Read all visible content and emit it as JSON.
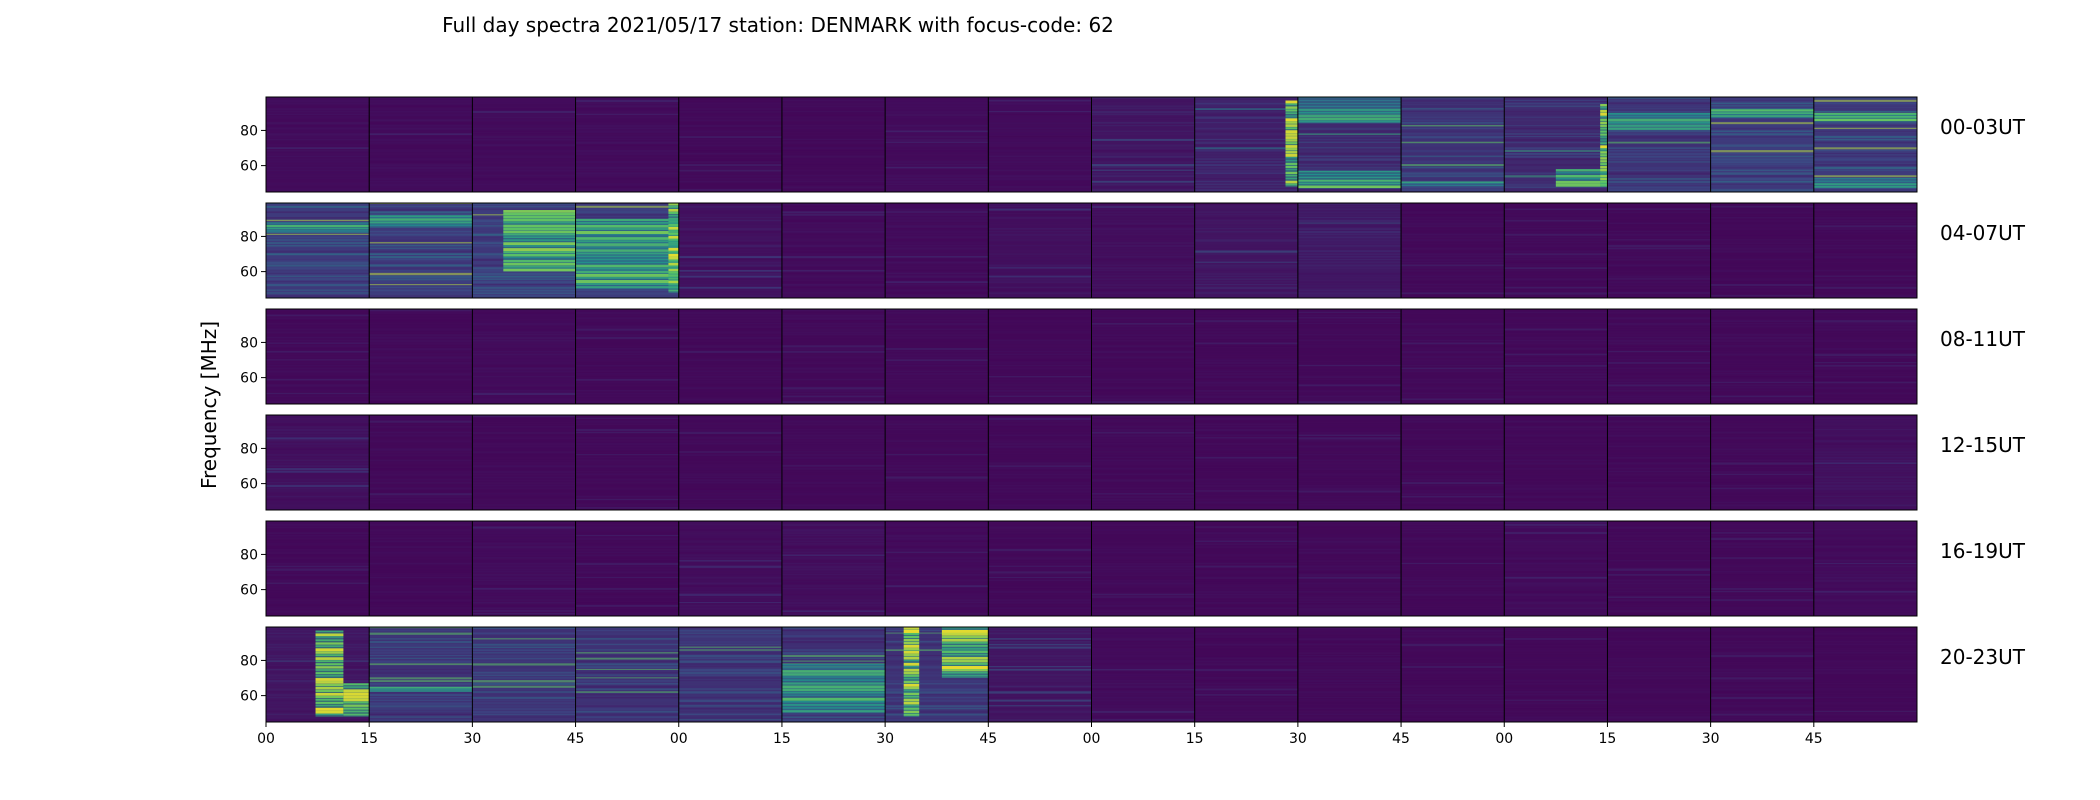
{
  "chart_data": {
    "type": "heatmap",
    "title": "Full day spectra 2021/05/17 station: DENMARK with focus-code: 62",
    "ylabel": "Frequency [MHz]",
    "xlabel": "",
    "ylim": [
      45,
      99
    ],
    "y_ticks": [
      60,
      80
    ],
    "x_tick_labels": [
      "00",
      "15",
      "30",
      "45",
      "00",
      "15",
      "30",
      "45",
      "00",
      "15",
      "30",
      "45",
      "00",
      "15",
      "30",
      "45"
    ],
    "colormap": "viridis",
    "colors": {
      "low": "#440154",
      "mid": "#21918c",
      "high": "#fde725"
    },
    "rows": [
      {
        "label": "00-03UT",
        "panels": [
          {
            "level": 0.05,
            "events": []
          },
          {
            "level": 0.05,
            "events": []
          },
          {
            "level": 0.05,
            "events": []
          },
          {
            "level": 0.05,
            "events": []
          },
          {
            "level": 0.04,
            "events": []
          },
          {
            "level": 0.04,
            "events": []
          },
          {
            "level": 0.05,
            "events": []
          },
          {
            "level": 0.05,
            "events": []
          },
          {
            "level": 0.1,
            "events": []
          },
          {
            "level": 0.15,
            "events": [
              {
                "t0": 0.88,
                "t1": 1.0,
                "f0": 48,
                "f1": 97,
                "intensity": 1.0
              }
            ]
          },
          {
            "level": 0.2,
            "events": [
              {
                "t0": 0.0,
                "t1": 1.0,
                "f0": 47,
                "f1": 57,
                "intensity": 0.9
              },
              {
                "t0": 0.0,
                "t1": 1.0,
                "f0": 84,
                "f1": 99,
                "intensity": 0.7
              }
            ]
          },
          {
            "level": 0.25,
            "events": [
              {
                "t0": 0.0,
                "t1": 1.0,
                "f0": 48,
                "f1": 51,
                "intensity": 0.6
              }
            ]
          },
          {
            "level": 0.2,
            "events": [
              {
                "t0": 0.5,
                "t1": 1.0,
                "f0": 48,
                "f1": 58,
                "intensity": 0.8
              },
              {
                "t0": 0.93,
                "t1": 1.0,
                "f0": 48,
                "f1": 95,
                "intensity": 1.0
              }
            ]
          },
          {
            "level": 0.25,
            "events": [
              {
                "t0": 0.0,
                "t1": 1.0,
                "f0": 80,
                "f1": 90,
                "intensity": 0.7
              }
            ]
          },
          {
            "level": 0.3,
            "events": [
              {
                "t0": 0.0,
                "t1": 1.0,
                "f0": 87,
                "f1": 92,
                "intensity": 0.9
              }
            ]
          },
          {
            "level": 0.3,
            "events": [
              {
                "t0": 0.0,
                "t1": 1.0,
                "f0": 85,
                "f1": 90,
                "intensity": 0.9
              },
              {
                "t0": 0.0,
                "t1": 1.0,
                "f0": 47,
                "f1": 53,
                "intensity": 0.7
              }
            ]
          }
        ]
      },
      {
        "label": "04-07UT",
        "panels": [
          {
            "level": 0.3,
            "events": [
              {
                "t0": 0.0,
                "t1": 1.0,
                "f0": 82,
                "f1": 88,
                "intensity": 0.8
              }
            ]
          },
          {
            "level": 0.3,
            "events": [
              {
                "t0": 0.0,
                "t1": 1.0,
                "f0": 85,
                "f1": 92,
                "intensity": 0.8
              }
            ]
          },
          {
            "level": 0.3,
            "events": [
              {
                "t0": 0.3,
                "t1": 1.0,
                "f0": 60,
                "f1": 95,
                "intensity": 0.85
              }
            ]
          },
          {
            "level": 0.3,
            "events": [
              {
                "t0": 0.0,
                "t1": 1.0,
                "f0": 50,
                "f1": 90,
                "intensity": 0.8
              },
              {
                "t0": 0.9,
                "t1": 1.0,
                "f0": 48,
                "f1": 99,
                "intensity": 1.0
              }
            ]
          },
          {
            "level": 0.08,
            "events": []
          },
          {
            "level": 0.05,
            "events": []
          },
          {
            "level": 0.05,
            "events": []
          },
          {
            "level": 0.07,
            "events": []
          },
          {
            "level": 0.06,
            "events": []
          },
          {
            "level": 0.1,
            "events": []
          },
          {
            "level": 0.12,
            "events": []
          },
          {
            "level": 0.04,
            "events": []
          },
          {
            "level": 0.04,
            "events": []
          },
          {
            "level": 0.04,
            "events": []
          },
          {
            "level": 0.04,
            "events": []
          },
          {
            "level": 0.04,
            "events": []
          }
        ]
      },
      {
        "label": "08-11UT",
        "panels": [
          {
            "level": 0.04,
            "events": []
          },
          {
            "level": 0.04,
            "events": []
          },
          {
            "level": 0.05,
            "events": []
          },
          {
            "level": 0.04,
            "events": []
          },
          {
            "level": 0.04,
            "events": []
          },
          {
            "level": 0.04,
            "events": []
          },
          {
            "level": 0.04,
            "events": []
          },
          {
            "level": 0.04,
            "events": []
          },
          {
            "level": 0.04,
            "events": []
          },
          {
            "level": 0.04,
            "events": []
          },
          {
            "level": 0.04,
            "events": []
          },
          {
            "level": 0.04,
            "events": []
          },
          {
            "level": 0.04,
            "events": []
          },
          {
            "level": 0.04,
            "events": []
          },
          {
            "level": 0.04,
            "events": []
          },
          {
            "level": 0.04,
            "events": []
          }
        ]
      },
      {
        "label": "12-15UT",
        "panels": [
          {
            "level": 0.07,
            "events": []
          },
          {
            "level": 0.04,
            "events": []
          },
          {
            "level": 0.04,
            "events": []
          },
          {
            "level": 0.04,
            "events": []
          },
          {
            "level": 0.04,
            "events": []
          },
          {
            "level": 0.04,
            "events": []
          },
          {
            "level": 0.04,
            "events": []
          },
          {
            "level": 0.04,
            "events": []
          },
          {
            "level": 0.04,
            "events": []
          },
          {
            "level": 0.04,
            "events": []
          },
          {
            "level": 0.04,
            "events": []
          },
          {
            "level": 0.04,
            "events": []
          },
          {
            "level": 0.04,
            "events": []
          },
          {
            "level": 0.04,
            "events": []
          },
          {
            "level": 0.04,
            "events": []
          },
          {
            "level": 0.07,
            "events": []
          }
        ]
      },
      {
        "label": "16-19UT",
        "panels": [
          {
            "level": 0.04,
            "events": []
          },
          {
            "level": 0.04,
            "events": []
          },
          {
            "level": 0.05,
            "events": []
          },
          {
            "level": 0.04,
            "events": []
          },
          {
            "level": 0.06,
            "events": []
          },
          {
            "level": 0.06,
            "events": []
          },
          {
            "level": 0.05,
            "events": []
          },
          {
            "level": 0.04,
            "events": []
          },
          {
            "level": 0.04,
            "events": []
          },
          {
            "level": 0.04,
            "events": []
          },
          {
            "level": 0.04,
            "events": []
          },
          {
            "level": 0.04,
            "events": []
          },
          {
            "level": 0.05,
            "events": []
          },
          {
            "level": 0.04,
            "events": []
          },
          {
            "level": 0.04,
            "events": []
          },
          {
            "level": 0.05,
            "events": []
          }
        ]
      },
      {
        "label": "20-23UT",
        "panels": [
          {
            "level": 0.1,
            "events": [
              {
                "t0": 0.48,
                "t1": 0.75,
                "f0": 48,
                "f1": 97,
                "intensity": 1.0
              },
              {
                "t0": 0.75,
                "t1": 1.0,
                "f0": 48,
                "f1": 67,
                "intensity": 1.0
              }
            ]
          },
          {
            "level": 0.25,
            "events": [
              {
                "t0": 0.0,
                "t1": 1.0,
                "f0": 62,
                "f1": 65,
                "intensity": 0.7
              }
            ]
          },
          {
            "level": 0.25,
            "events": []
          },
          {
            "level": 0.25,
            "events": []
          },
          {
            "level": 0.25,
            "events": []
          },
          {
            "level": 0.25,
            "events": [
              {
                "t0": 0.0,
                "t1": 1.0,
                "f0": 50,
                "f1": 78,
                "intensity": 0.75
              }
            ]
          },
          {
            "level": 0.25,
            "events": [
              {
                "t0": 0.18,
                "t1": 0.33,
                "f0": 48,
                "f1": 99,
                "intensity": 1.0
              },
              {
                "t0": 0.55,
                "t1": 1.0,
                "f0": 70,
                "f1": 99,
                "intensity": 1.0
              }
            ]
          },
          {
            "level": 0.1,
            "events": []
          },
          {
            "level": 0.05,
            "events": []
          },
          {
            "level": 0.04,
            "events": []
          },
          {
            "level": 0.04,
            "events": []
          },
          {
            "level": 0.04,
            "events": []
          },
          {
            "level": 0.04,
            "events": []
          },
          {
            "level": 0.04,
            "events": []
          },
          {
            "level": 0.04,
            "events": []
          },
          {
            "level": 0.04,
            "events": []
          }
        ]
      }
    ]
  }
}
